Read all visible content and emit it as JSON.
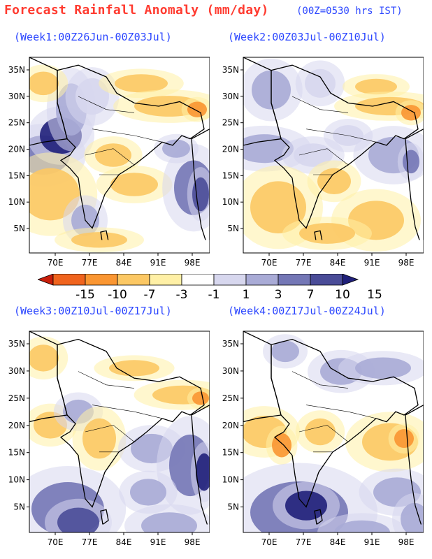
{
  "header": {
    "title": "Forecast Rainfall Anomaly (mm/day)",
    "subtitle": "(00Z=0530 hrs IST)"
  },
  "colors": {
    "title": "#ff3b30",
    "labels": "#2b46ff",
    "scale": [
      "#c81e0a",
      "#f0641e",
      "#fa9632",
      "#fcc864",
      "#fff0a6",
      "#ffffff",
      "#d7d7ee",
      "#a9abd6",
      "#7477b6",
      "#4a4c98",
      "#20207a"
    ]
  },
  "axes": {
    "lat_ticks": [
      "35N",
      "30N",
      "25N",
      "20N",
      "15N",
      "10N",
      "5N"
    ],
    "lon_ticks": [
      "70E",
      "77E",
      "84E",
      "91E",
      "98E"
    ]
  },
  "colorbar": {
    "levels": [
      "-15",
      "-10",
      "-7",
      "-3",
      "-1",
      "1",
      "3",
      "7",
      "10",
      "15"
    ]
  },
  "panels": [
    {
      "label": "(Week1:00Z26Jun-00Z03Jul)"
    },
    {
      "label": "(Week2:00Z03Jul-00Z10Jul)"
    },
    {
      "label": "(Week3:00Z10Jul-00Z17Jul)"
    },
    {
      "label": "(Week4:00Z17Jul-00Z24Jul)"
    }
  ]
}
